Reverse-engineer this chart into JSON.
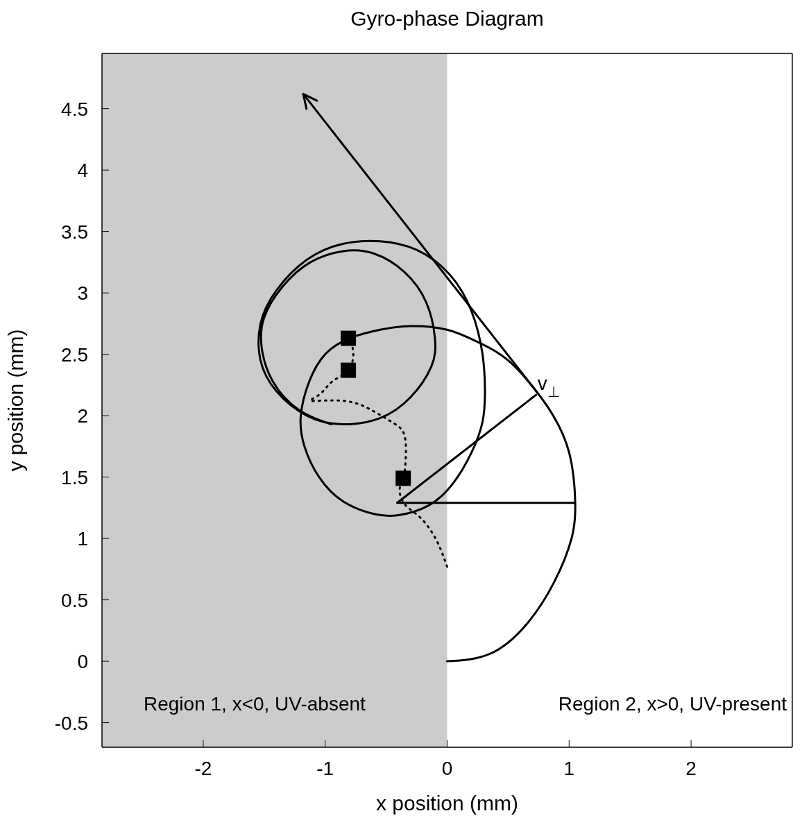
{
  "chart_data": {
    "type": "line",
    "title": "Gyro-phase Diagram",
    "xlabel": "x position (mm)",
    "ylabel": "y position (mm)",
    "xlim": [
      -2.83,
      2.83
    ],
    "ylim": [
      -0.7,
      4.95
    ],
    "xticks": [
      -2,
      -1,
      0,
      1,
      2
    ],
    "yticks": [
      -0.5,
      0,
      0.5,
      1,
      1.5,
      2,
      2.5,
      3,
      3.5,
      4,
      4.5
    ],
    "grid": false,
    "bands": [
      {
        "axis": "x",
        "from": -2.83,
        "to": 0,
        "color": "#cccccc"
      }
    ],
    "annotations": [
      "Region 1, x<0, UV-absent",
      "Region 2, x>0, UV-present",
      "v$_{⊥}$"
    ],
    "series": [
      {
        "color": "#000000",
        "line_style": "solid",
        "x": [
          0,
          0.35,
          0.65,
          0.88,
          1.02,
          1.05,
          1.0,
          0.87,
          0.73,
          0.5,
          0.25,
          0,
          -0.3,
          -0.55,
          -0.8,
          -1.0,
          -1.13,
          -1.2,
          -1.17,
          -1.05,
          -0.85,
          -0.6,
          -0.4,
          -0.15,
          0.05,
          0.2,
          0.29,
          0.31,
          0.29,
          0.2,
          0.02,
          -0.25,
          -0.55,
          -0.85,
          -1.15,
          -1.4,
          -1.53,
          -1.53,
          -1.4,
          -1.15,
          -0.86,
          -0.55,
          -0.3,
          -0.13,
          -0.1,
          -0.17,
          -0.35,
          -0.6,
          -0.85,
          -1.12,
          -1.35,
          -1.5,
          -1.52,
          -1.43,
          -1.22,
          -0.95
        ],
        "values": [
          0,
          0.06,
          0.3,
          0.65,
          1.0,
          1.3,
          1.7,
          2.0,
          2.2,
          2.45,
          2.6,
          2.7,
          2.73,
          2.7,
          2.63,
          2.5,
          2.28,
          2.0,
          1.75,
          1.5,
          1.3,
          1.2,
          1.19,
          1.27,
          1.45,
          1.7,
          1.95,
          2.2,
          2.5,
          2.85,
          3.15,
          3.35,
          3.42,
          3.4,
          3.27,
          3.02,
          2.75,
          2.45,
          2.2,
          2.0,
          1.93,
          1.98,
          2.15,
          2.4,
          2.63,
          2.92,
          3.17,
          3.32,
          3.34,
          3.25,
          3.05,
          2.8,
          2.55,
          2.28,
          2.05,
          1.93
        ]
      },
      {
        "color": "#000000",
        "line_style": "dotted",
        "x": [
          0,
          -0.09,
          -0.22,
          -0.34,
          -0.39,
          -0.36,
          -0.34,
          -0.35,
          -0.44,
          -0.61,
          -0.84,
          -1.11,
          -1.05,
          -0.94,
          -0.81,
          -0.77,
          -0.81
        ],
        "values": [
          0.77,
          0.99,
          1.17,
          1.27,
          1.39,
          1.49,
          1.64,
          1.84,
          1.94,
          2.04,
          2.12,
          2.12,
          2.17,
          2.28,
          2.37,
          2.52,
          2.63
        ]
      },
      {
        "color": "#000000",
        "line_style": "solid",
        "x": [
          1.04,
          -0.41,
          0.73
        ],
        "values": [
          1.29,
          1.29,
          2.17
        ]
      },
      {
        "type": "scatter",
        "color": "#000000",
        "marker": "square",
        "x": [
          -0.81,
          -0.81,
          -0.36
        ],
        "values": [
          2.63,
          2.37,
          1.49
        ]
      }
    ]
  }
}
